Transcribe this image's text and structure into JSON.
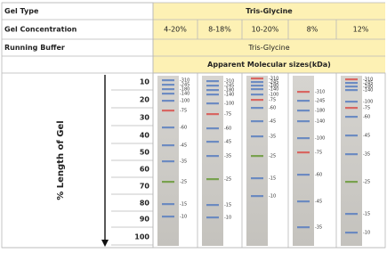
{
  "table": {
    "rows": [
      [
        "Gel Type",
        "Tris-Glycine"
      ],
      [
        "Gel Concentration",
        "4-20%",
        "8-18%",
        "10-20%",
        "8%",
        "12%"
      ],
      [
        "Running Buffer",
        "Tris-Glycine"
      ],
      [
        "Apparent Molecular sizes(kDa)"
      ]
    ],
    "axis_title": "% Length of Gel",
    "scale": [
      10,
      20,
      30,
      40,
      50,
      60,
      70,
      80,
      90,
      100
    ],
    "lanes": [
      {
        "markers": [
          {
            "label": "-310",
            "color": "#5a7fc0"
          },
          {
            "label": "-245",
            "color": "#5a7fc0"
          },
          {
            "label": "-180",
            "color": "#5a7fc0"
          },
          {
            "label": "-140",
            "color": "#5a7fc0"
          },
          {
            "label": "-100",
            "color": "#5a7fc0"
          },
          {
            "label": "-75",
            "color": "#d9534f"
          },
          {
            "label": "-60",
            "color": "#5a7fc0"
          },
          {
            "label": "-45",
            "color": "#5a7fc0"
          },
          {
            "label": "-35",
            "color": "#5a7fc0"
          },
          {
            "label": "-25",
            "color": "#6a9a3a"
          },
          {
            "label": "-15",
            "color": "#5a7fc0"
          },
          {
            "label": "-10",
            "color": "#5a7fc0"
          }
        ]
      },
      {
        "markers": [
          {
            "label": "-310",
            "color": "#5a7fc0"
          },
          {
            "label": "-245",
            "color": "#5a7fc0"
          },
          {
            "label": "-180",
            "color": "#5a7fc0"
          },
          {
            "label": "-140",
            "color": "#5a7fc0"
          },
          {
            "label": "-100",
            "color": "#5a7fc0"
          },
          {
            "label": "-75",
            "color": "#d9534f"
          },
          {
            "label": "-60",
            "color": "#5a7fc0"
          },
          {
            "label": "-45",
            "color": "#5a7fc0"
          },
          {
            "label": "-35",
            "color": "#5a7fc0"
          },
          {
            "label": "-25",
            "color": "#6a9a3a"
          },
          {
            "label": "-15",
            "color": "#5a7fc0"
          },
          {
            "label": "-10",
            "color": "#5a7fc0"
          }
        ]
      },
      {
        "markers": [
          {
            "label": "-310",
            "color": "#d9534f"
          },
          {
            "label": "-245",
            "color": "#5a7fc0"
          },
          {
            "label": "-180",
            "color": "#5a7fc0"
          },
          {
            "label": "-140",
            "color": "#5a7fc0"
          },
          {
            "label": "-100",
            "color": "#5a7fc0"
          },
          {
            "label": "-75",
            "color": "#d9534f"
          },
          {
            "label": "-60",
            "color": "#5a7fc0"
          },
          {
            "label": "-45",
            "color": "#5a7fc0"
          },
          {
            "label": "-35",
            "color": "#5a7fc0"
          },
          {
            "label": "-25",
            "color": "#6a9a3a"
          },
          {
            "label": "-15",
            "color": "#5a7fc0"
          },
          {
            "label": "-10",
            "color": "#5a7fc0"
          }
        ]
      },
      {
        "markers": [
          {
            "label": "-310",
            "color": "#d9534f"
          },
          {
            "label": "-245",
            "color": "#5a7fc0"
          },
          {
            "label": "-180",
            "color": "#5a7fc0"
          },
          {
            "label": "-140",
            "color": "#5a7fc0"
          },
          {
            "label": "-100",
            "color": "#5a7fc0"
          },
          {
            "label": "-75",
            "color": "#d9534f"
          },
          {
            "label": "-60",
            "color": "#5a7fc0"
          },
          {
            "label": "-45",
            "color": "#5a7fc0"
          },
          {
            "label": "-35",
            "color": "#5a7fc0"
          }
        ]
      },
      {
        "markers": [
          {
            "label": "-310",
            "color": "#d9534f"
          },
          {
            "label": "-245",
            "color": "#5a7fc0"
          },
          {
            "label": "-180",
            "color": "#5a7fc0"
          },
          {
            "label": "-140",
            "color": "#5a7fc0"
          },
          {
            "label": "-100",
            "color": "#5a7fc0"
          },
          {
            "label": "-75",
            "color": "#d9534f"
          },
          {
            "label": "-60",
            "color": "#5a7fc0"
          },
          {
            "label": "-45",
            "color": "#5a7fc0"
          },
          {
            "label": "-35",
            "color": "#5a7fc0"
          },
          {
            "label": "-25",
            "color": "#6a9a3a"
          },
          {
            "label": "-15",
            "color": "#5a7fc0"
          },
          {
            "label": "-10",
            "color": "#5a7fc0"
          }
        ]
      }
    ]
  }
}
